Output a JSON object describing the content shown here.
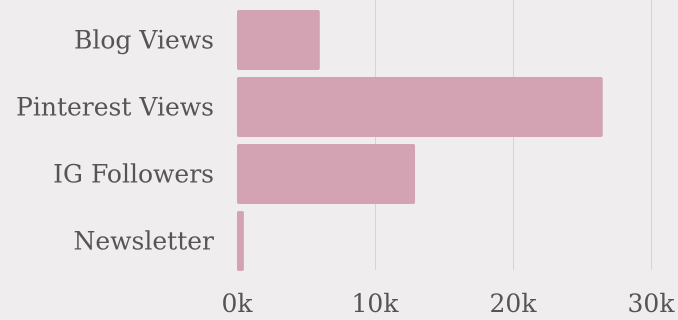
{
  "chart_data": {
    "type": "bar",
    "orientation": "horizontal",
    "categories": [
      "Blog Views",
      "Pinterest Views",
      "IG Followers",
      "Newsletter"
    ],
    "values": [
      6000,
      26500,
      12900,
      500
    ],
    "xlim": [
      0,
      30000
    ],
    "xticks": [
      0,
      10000,
      20000,
      30000
    ],
    "xtick_labels": [
      "0k",
      "10k",
      "20k",
      "30k"
    ],
    "grid": true,
    "legend": "none",
    "colors": {
      "bar": "#d3a3b3",
      "background": "#efeded",
      "grid": "#d6d3d3",
      "text": "#555555"
    }
  }
}
